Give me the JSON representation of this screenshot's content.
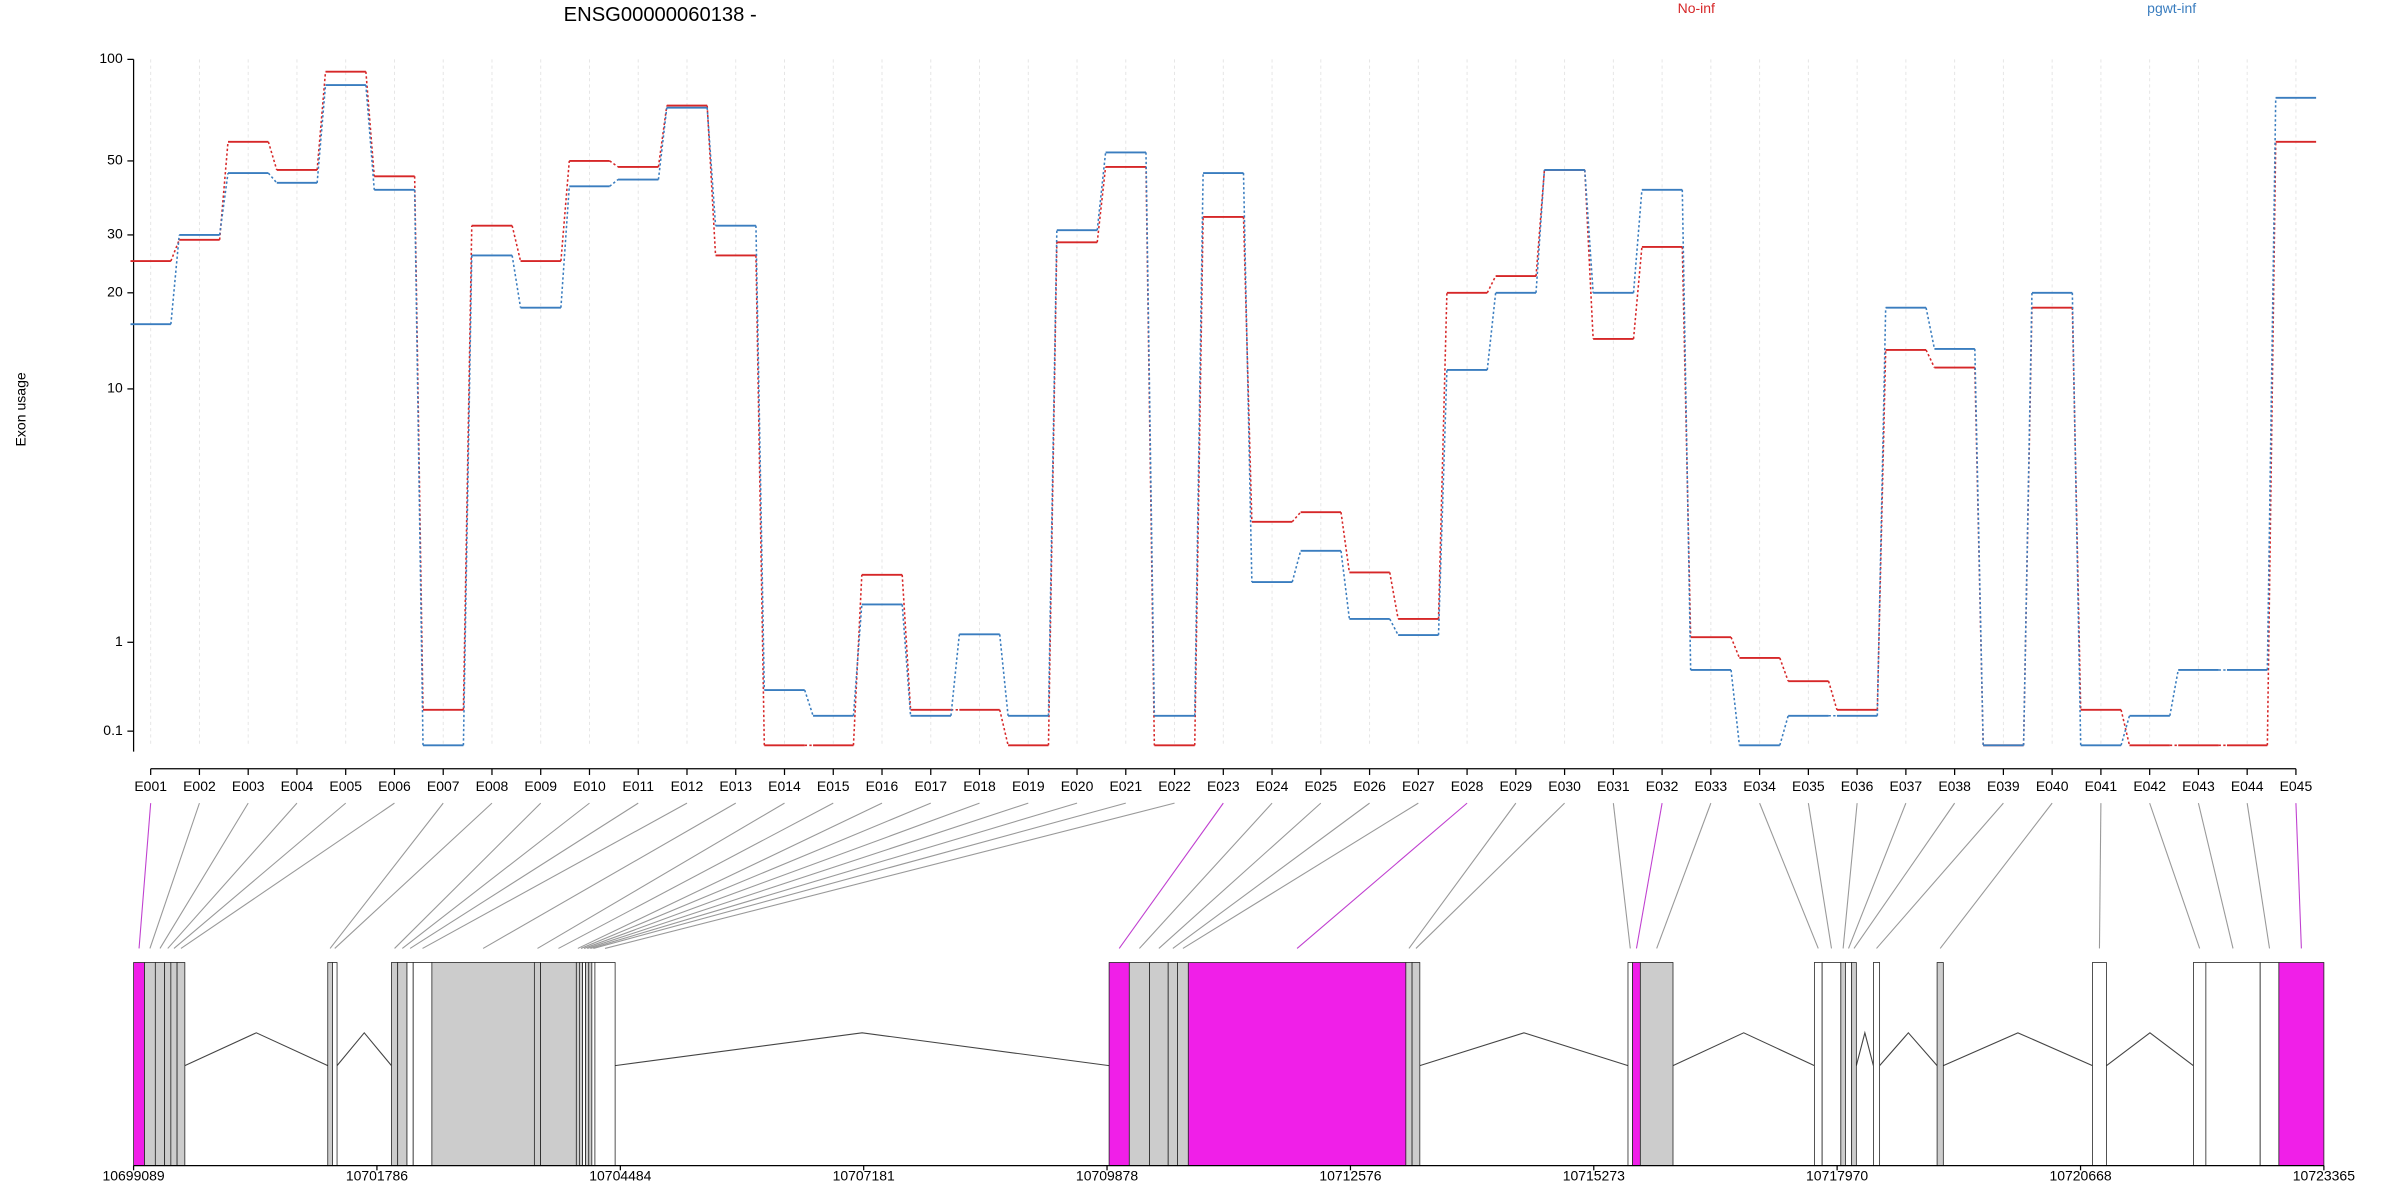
{
  "chart_data": [
    {
      "type": "line",
      "title": "ENSG00000060138 -",
      "y_label": "Exon usage",
      "categories": [
        "E001",
        "E002",
        "E003",
        "E004",
        "E005",
        "E006",
        "E007",
        "E008",
        "E009",
        "E010",
        "E011",
        "E012",
        "E013",
        "E014",
        "E015",
        "E016",
        "E017",
        "E018",
        "E019",
        "E020",
        "E021",
        "E022",
        "E023",
        "E024",
        "E025",
        "E026",
        "E027",
        "E028",
        "E029",
        "E030",
        "E031",
        "E032",
        "E033",
        "E034",
        "E035",
        "E036",
        "E037",
        "E038",
        "E039",
        "E040",
        "E041",
        "E042",
        "E043",
        "E044",
        "E045"
      ],
      "series": [
        {
          "name": "No-inf",
          "color": "#d62728",
          "values": [
            25,
            29,
            57,
            47,
            92,
            45,
            0.27,
            32,
            25,
            50,
            48,
            73,
            26,
            0,
            0,
            2.15,
            0.27,
            0.27,
            0,
            28.5,
            48,
            0,
            34,
            3.5,
            3.8,
            2.2,
            1.34,
            20,
            22.5,
            47,
            14.4,
            27.6,
            1.07,
            0.8,
            0.54,
            0.27,
            13.3,
            11.7,
            0,
            18,
            0.27,
            0,
            0,
            0,
            57
          ]
        },
        {
          "name": "pgwt-inf",
          "color": "#3a7dbf",
          "values": [
            16,
            30,
            46,
            43,
            84,
            41,
            0,
            26,
            18,
            42,
            44,
            72,
            32,
            0.45,
            0.22,
            1.58,
            0.22,
            1.11,
            0.22,
            31,
            53,
            0.22,
            46,
            2,
            2.7,
            1.34,
            1.1,
            11.5,
            20,
            47,
            20,
            41,
            0.66,
            0,
            0.22,
            0.22,
            18,
            13.4,
            0,
            20,
            0,
            0.22,
            0.66,
            0.66,
            77
          ]
        }
      ],
      "yscale": "log1p",
      "ylim": [
        0,
        100
      ],
      "yticks": [
        0.1,
        1,
        10,
        20,
        30,
        50,
        100
      ],
      "grid": true
    },
    {
      "type": "exons",
      "starts": [
        10699089,
        10699210,
        10699330,
        10699433,
        10699502,
        10699571,
        10701241,
        10701293,
        10701947,
        10702016,
        10702119,
        10702188,
        10702395,
        10703531,
        10703600,
        10703996,
        10704030,
        10704065,
        10704099,
        10704134,
        10704168,
        10704202,
        10709901,
        10710125,
        10710349,
        10710556,
        10710659,
        10710779,
        10713190,
        10713259,
        10715652,
        10715703,
        10715789,
        10717718,
        10717804,
        10718011,
        10718062,
        10718131,
        10718372,
        10719078,
        10720800,
        10721919,
        10722057,
        10722659,
        10722866
      ],
      "ends": [
        10699210,
        10699330,
        10699433,
        10699502,
        10699571,
        10699657,
        10701293,
        10701344,
        10702016,
        10702119,
        10702188,
        10702395,
        10703531,
        10703600,
        10703996,
        10704030,
        10704065,
        10704099,
        10704134,
        10704168,
        10704202,
        10704426,
        10710125,
        10710349,
        10710556,
        10710659,
        10710779,
        10713190,
        10713259,
        10713345,
        10715703,
        10715789,
        10716151,
        10717804,
        10718011,
        10718062,
        10718131,
        10718183,
        10718441,
        10719147,
        10720955,
        10722057,
        10722659,
        10722866,
        10723365
      ],
      "colors": [
        "#f01fe8",
        "#cccccc",
        "#cccccc",
        "#cccccc",
        "#cccccc",
        "#cccccc",
        "#cccccc",
        "#ffffff",
        "#cccccc",
        "#cccccc",
        "#ffffff",
        "#ffffff",
        "#cccccc",
        "#cccccc",
        "#cccccc",
        "#cccccc",
        "#cccccc",
        "#ffffff",
        "#cccccc",
        "#cccccc",
        "#ffffff",
        "#ffffff",
        "#f01fe8",
        "#cccccc",
        "#cccccc",
        "#cccccc",
        "#cccccc",
        "#f01fe8",
        "#cccccc",
        "#cccccc",
        "#ffffff",
        "#f01fe8",
        "#cccccc",
        "#ffffff",
        "#ffffff",
        "#cccccc",
        "#ffffff",
        "#cccccc",
        "#ffffff",
        "#cccccc",
        "#ffffff",
        "#ffffff",
        "#ffffff",
        "#ffffff",
        "#f01fe8"
      ],
      "xlim": [
        10699089,
        10723365
      ],
      "xticks": [
        10699089,
        10701786,
        10704484,
        10707181,
        10709878,
        10712576,
        10715273,
        10717970,
        10720668,
        10723365
      ]
    }
  ]
}
